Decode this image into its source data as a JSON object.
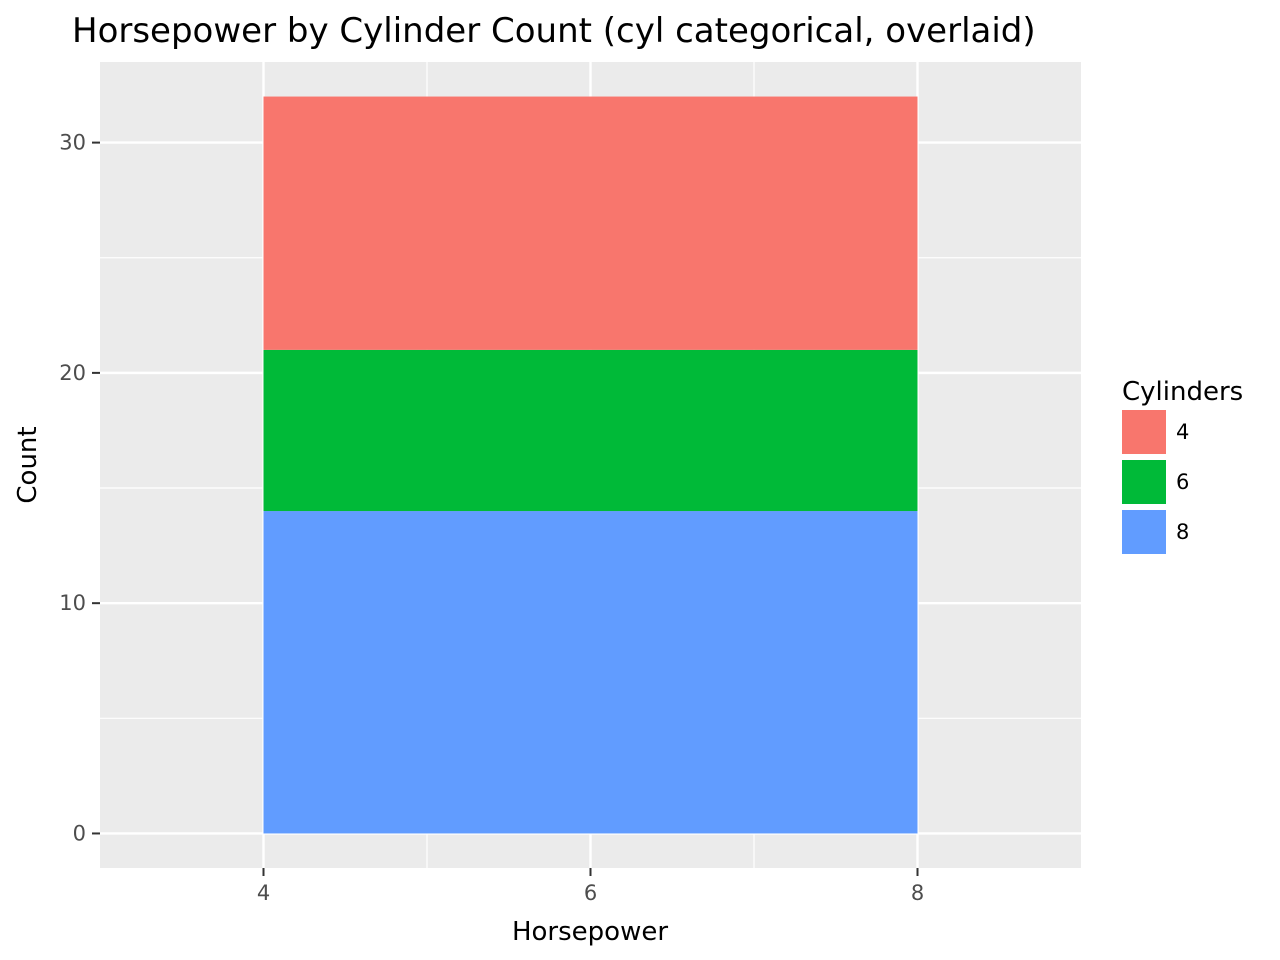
{
  "chart_data": {
    "type": "bar",
    "title": "Horsepower by Cylinder Count (cyl categorical, overlaid)",
    "xlabel": "Horsepower",
    "ylabel": "Count",
    "xlim": [
      3,
      9
    ],
    "ylim": [
      -1.5,
      33.5
    ],
    "x_ticks": [
      "4",
      "6",
      "8"
    ],
    "y_ticks": [
      "0",
      "10",
      "20",
      "30"
    ],
    "bar_x_range": [
      4,
      8
    ],
    "stacked": true,
    "grid": true,
    "legend": {
      "title": "Cylinders",
      "placement": "right"
    },
    "series": [
      {
        "name": "8",
        "value": 14,
        "color": "#619CFF"
      },
      {
        "name": "6",
        "value": 7,
        "color": "#00BA38"
      },
      {
        "name": "4",
        "value": 11,
        "color": "#F8766D"
      }
    ],
    "colors": {
      "panel": "#EBEBEB",
      "grid": "#FFFFFF",
      "tick": "#333333"
    }
  }
}
